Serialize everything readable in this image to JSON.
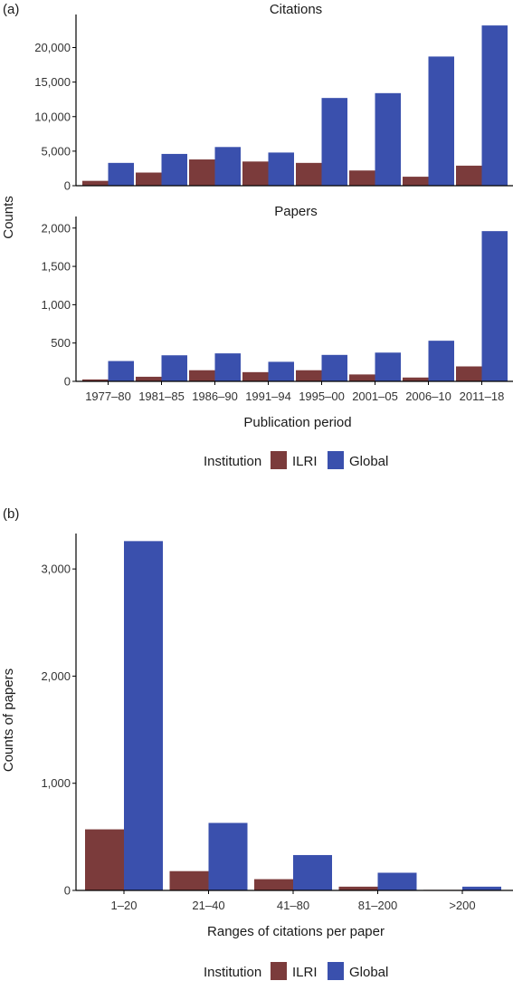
{
  "panel_a": {
    "label": "(a)",
    "ylabel": "Counts",
    "xlabel": "Publication period",
    "legend": {
      "title": "Institution"
    }
  },
  "panel_b": {
    "label": "(b)",
    "legend": {
      "title": "Institution"
    }
  },
  "colors": {
    "ILRI": "#7b3b3b",
    "Global": "#3a50ad"
  },
  "chart_data": [
    {
      "type": "bar",
      "title": "Citations",
      "categories": [
        "1977–80",
        "1981–85",
        "1986–90",
        "1991–94",
        "1995–00",
        "2001–05",
        "2006–10",
        "2011–18"
      ],
      "series": [
        {
          "name": "ILRI",
          "values": [
            700,
            1900,
            3800,
            3500,
            3300,
            2200,
            1300,
            2900
          ]
        },
        {
          "name": "Global",
          "values": [
            3300,
            4600,
            5600,
            4800,
            12700,
            13400,
            18700,
            23200
          ]
        }
      ],
      "yticks": [
        0,
        5000,
        10000,
        15000,
        20000
      ],
      "ytick_labels": [
        "0",
        "5,000",
        "10,000",
        "15,000",
        "20,000"
      ],
      "ylim": [
        0,
        24000
      ],
      "legend_position": "bottom"
    },
    {
      "type": "bar",
      "title": "Papers",
      "categories": [
        "1977–80",
        "1981–85",
        "1986–90",
        "1991–94",
        "1995–00",
        "2001–05",
        "2006–10",
        "2011–18"
      ],
      "series": [
        {
          "name": "ILRI",
          "values": [
            25,
            60,
            145,
            120,
            145,
            90,
            50,
            195
          ]
        },
        {
          "name": "Global",
          "values": [
            265,
            340,
            365,
            255,
            345,
            375,
            530,
            1960
          ]
        }
      ],
      "yticks": [
        0,
        500,
        1000,
        1500,
        2000
      ],
      "ytick_labels": [
        "0",
        "500",
        "1,000",
        "1,500",
        "2,000"
      ],
      "ylim": [
        0,
        2080
      ],
      "xlabel": "Publication period",
      "legend_position": "bottom"
    },
    {
      "type": "bar",
      "title": "",
      "xlabel": "Ranges of citations per paper",
      "ylabel": "Counts of papers",
      "categories": [
        "1–20",
        "21–40",
        "41–80",
        "81–200",
        ">200"
      ],
      "series": [
        {
          "name": "ILRI",
          "values": [
            570,
            180,
            105,
            35,
            5
          ]
        },
        {
          "name": "Global",
          "values": [
            3260,
            630,
            330,
            165,
            35
          ]
        }
      ],
      "yticks": [
        0,
        1000,
        2000,
        3000
      ],
      "ytick_labels": [
        "0",
        "1,000",
        "2,000",
        "3,000"
      ],
      "ylim": [
        0,
        3280
      ],
      "legend_position": "bottom"
    }
  ]
}
